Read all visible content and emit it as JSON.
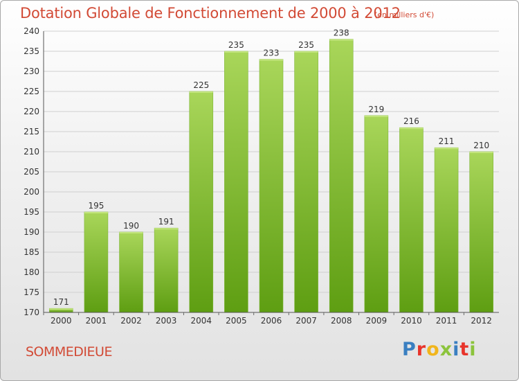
{
  "header": {
    "title": "Dotation Globale de Fonctionnement de 2000 à 2012",
    "subtitle": "(en milliers d'€)"
  },
  "footer": {
    "commune": "SOMMEDIEUE",
    "brand": "Proxiti",
    "brand_colors": [
      "#3a7fc1",
      "#e8342b",
      "#f1b51c",
      "#8cc43c",
      "#3a7fc1",
      "#e8342b",
      "#8cc43c"
    ]
  },
  "colors": {
    "bar_top": "#a9d65a",
    "bar_bottom": "#5e9e12",
    "grid": "#cfcfcf",
    "text_accent": "#d24a35"
  },
  "chart_data": {
    "type": "bar",
    "title": "Dotation Globale de Fonctionnement de 2000 à 2012",
    "subtitle": "(en milliers d'€)",
    "categories": [
      "2000",
      "2001",
      "2002",
      "2003",
      "2004",
      "2005",
      "2006",
      "2007",
      "2008",
      "2009",
      "2010",
      "2011",
      "2012"
    ],
    "values": [
      171,
      195,
      190,
      191,
      225,
      235,
      233,
      235,
      238,
      219,
      216,
      211,
      210
    ],
    "value_labels": [
      "171",
      "195",
      "190",
      "191",
      "225",
      "235",
      "233",
      "235",
      "238",
      "219",
      "216",
      "211",
      "210"
    ],
    "yticks": [
      "170",
      "175",
      "180",
      "185",
      "190",
      "195",
      "200",
      "205",
      "210",
      "215",
      "220",
      "225",
      "230",
      "235",
      "240"
    ],
    "ylim": [
      170,
      240
    ],
    "grid": true,
    "legend": "none"
  }
}
